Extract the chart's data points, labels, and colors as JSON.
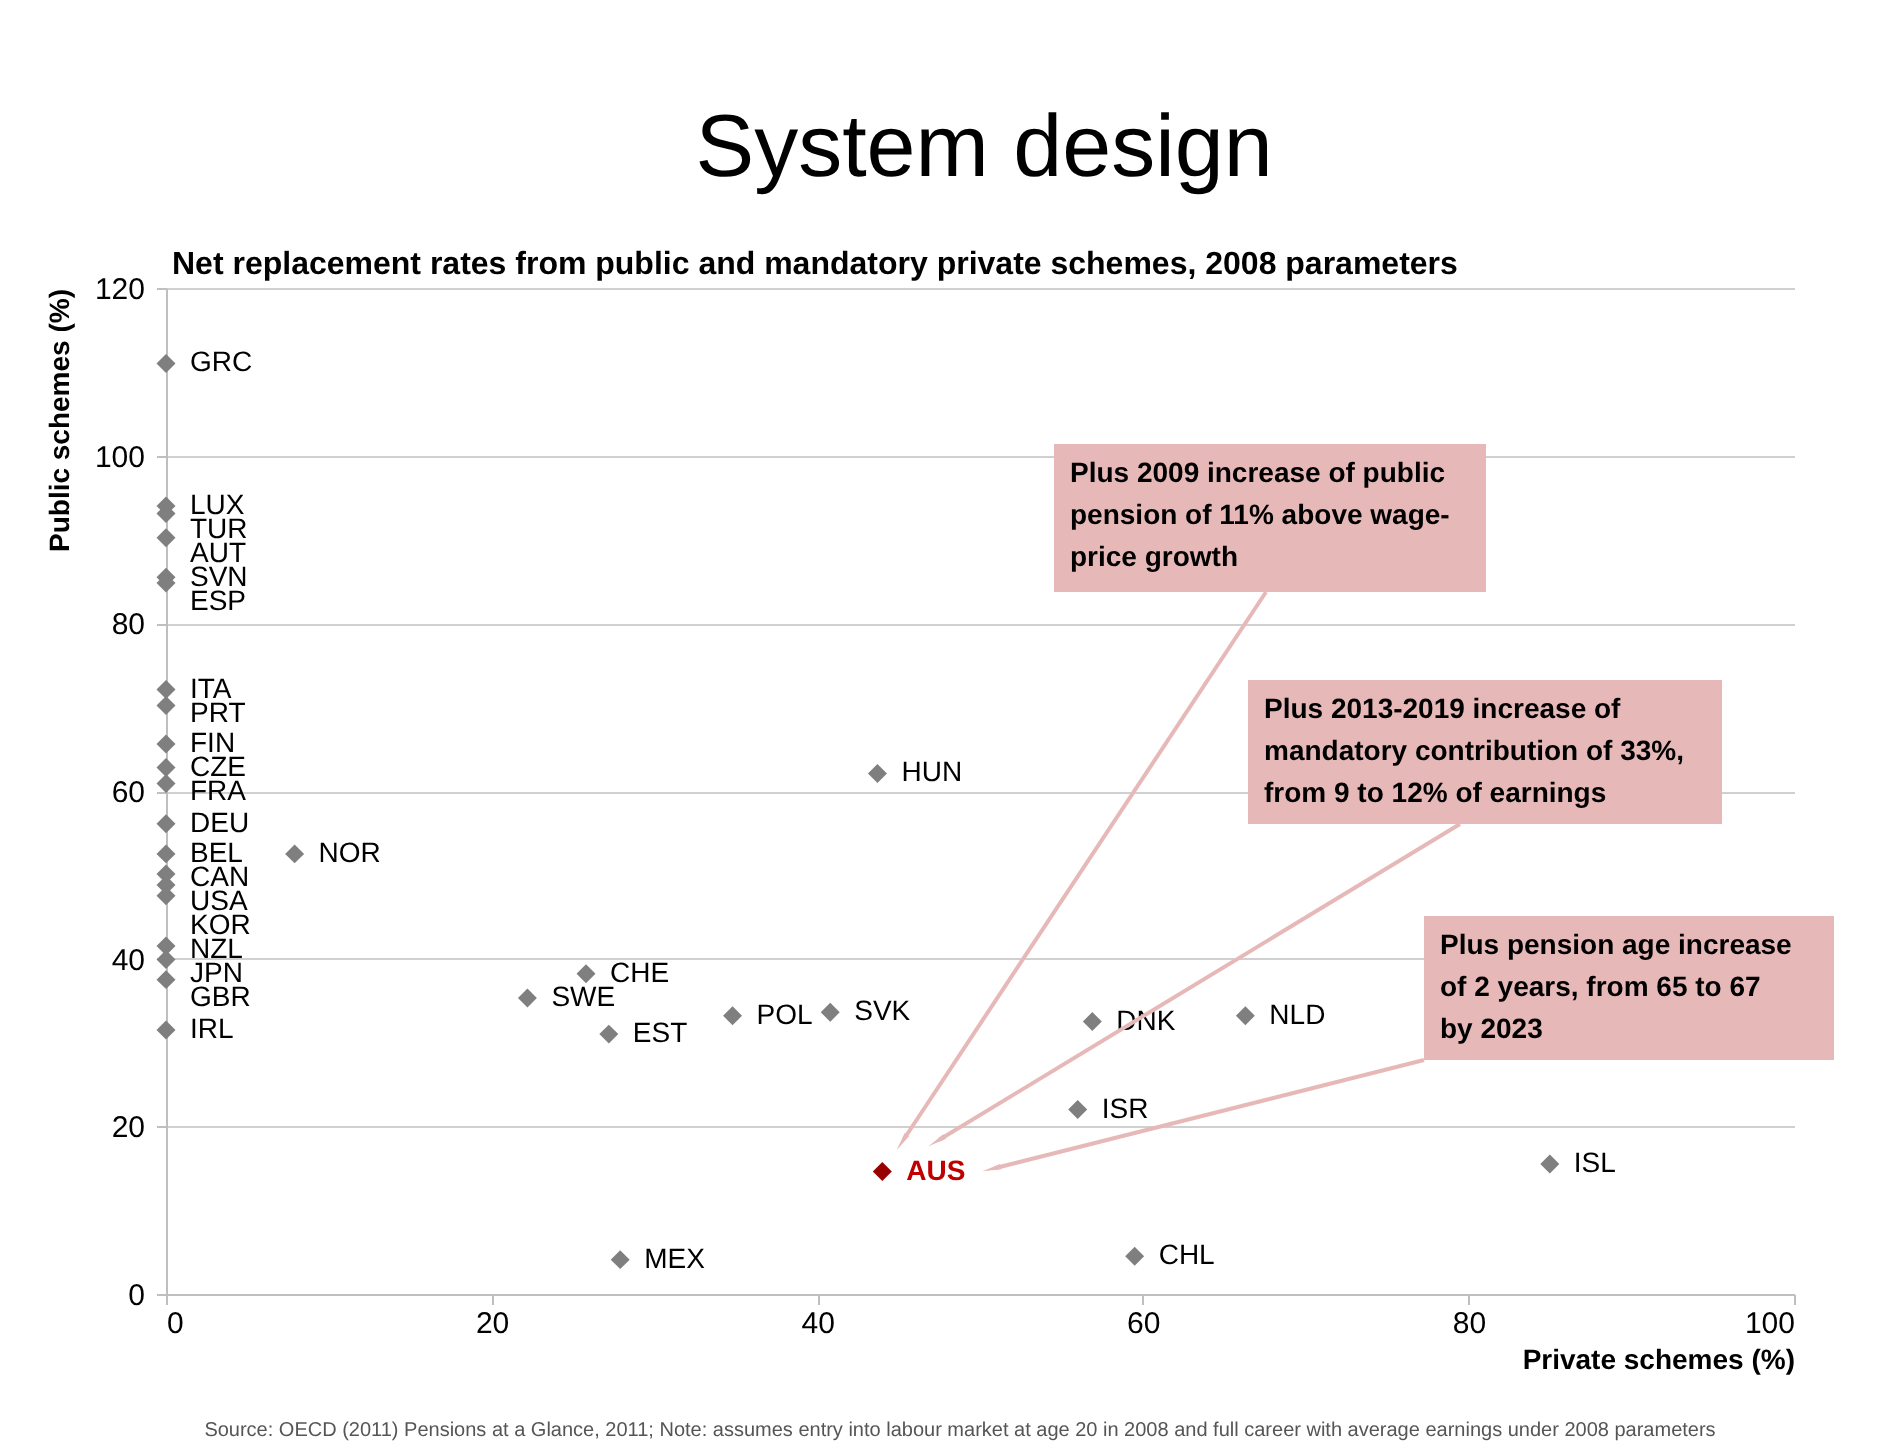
{
  "chart_data": {
    "type": "scatter",
    "title": "System design",
    "subtitle": "Net replacement rates from public and mandatory private schemes, 2008 parameters",
    "xlabel": "Private schemes (%)",
    "ylabel": "Public schemes (%)",
    "series": [
      {
        "color": "#7f7f7f",
        "x": [
          0,
          0,
          0,
          0,
          0,
          0,
          0,
          0,
          0,
          0,
          0,
          0,
          0,
          0,
          0,
          0,
          0,
          0,
          0,
          0,
          7.9,
          43.7,
          25.8,
          22.2,
          27.2,
          34.8,
          40.8,
          56.9,
          56.0,
          27.9,
          59.5,
          66.3,
          85.0
        ],
        "values": [
          111.0,
          94.0,
          93.1,
          90.2,
          85.5,
          84.8,
          72.1,
          70.2,
          65.6,
          62.8,
          60.9,
          56.1,
          52.5,
          50.1,
          48.8,
          47.5,
          41.5,
          39.9,
          37.5,
          31.5,
          52.5,
          62.1,
          38.2,
          35.3,
          31.0,
          33.2,
          33.6,
          32.5,
          22.0,
          4.1,
          4.5,
          33.2,
          15.5
        ],
        "value_labels": [
          "GRC",
          "LUX",
          "TUR",
          "AUT",
          "SVN",
          "ESP",
          "ITA",
          "PRT",
          "FIN",
          "CZE",
          "FRA",
          "DEU",
          "BEL",
          "CAN",
          "USA",
          "KOR",
          "NZL",
          "JPN",
          "GBR",
          "IRL",
          "NOR",
          "HUN",
          "CHE",
          "SWE",
          "EST",
          "POL",
          "SVK",
          "DNK",
          "ISR",
          "MEX",
          "CHL",
          "NLD",
          "ISL"
        ]
      },
      {
        "color": "#990000",
        "x": [
          44.0
        ],
        "values": [
          14.6
        ],
        "value_labels": [
          "AUS"
        ]
      }
    ],
    "xlim": [
      0,
      100
    ],
    "ylim": [
      0,
      120
    ],
    "xticks": [
      0,
      20,
      40,
      60,
      80,
      100
    ],
    "yticks": [
      0,
      20,
      40,
      60,
      80,
      100,
      120
    ],
    "grid": "y",
    "marker": "diamond",
    "annotations": [
      {
        "text": "Plus 2009 increase of public pension of 11% above wage-price growth",
        "x": 45.3,
        "y": 18.4
      },
      {
        "text": "Plus 2013-2019 increase of mandatory contribution of 33%, from 9 to 12% of earnings",
        "x": 47.5,
        "y": 18.4
      },
      {
        "text": "Plus pension age increase of 2 years, from 65 to 67 by  2023",
        "x": 50.9,
        "y": 15.0
      },
      "Source: OECD (2011) Pensions at a Glance, 2011; Note: assumes entry into labour market at age 20 in 2008 and full career with average earnings under 2008 parameters"
    ]
  }
}
